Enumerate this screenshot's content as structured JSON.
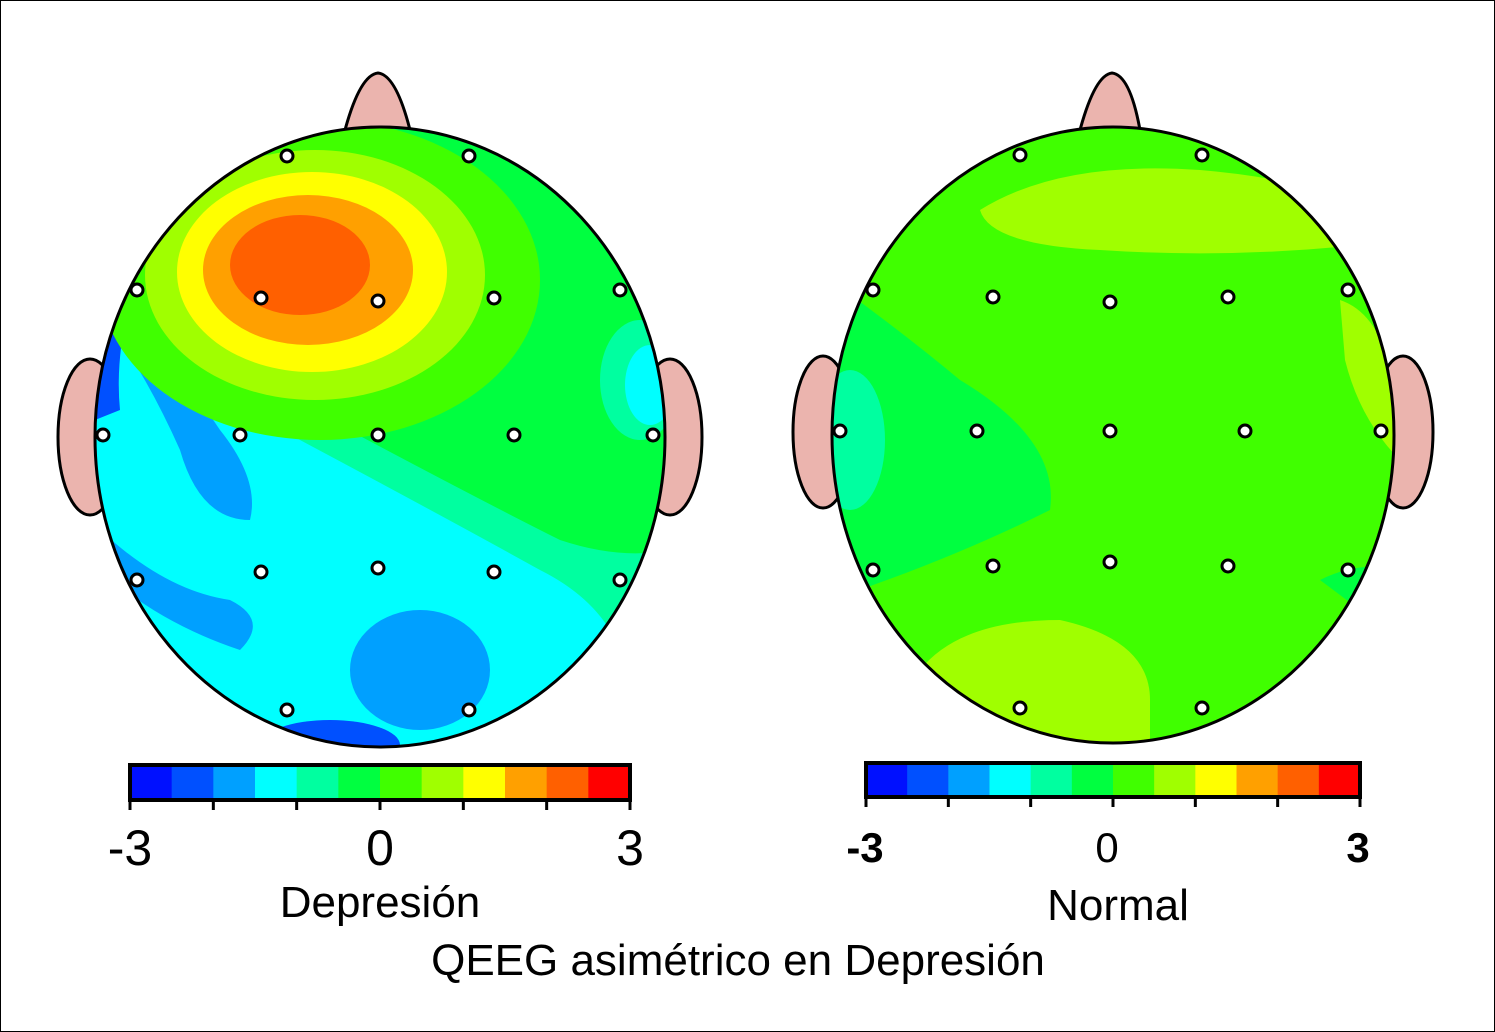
{
  "figure": {
    "title": "QEEG asimétrico en Depresión",
    "colormap": [
      "#0010ff",
      "#0050ff",
      "#00a0ff",
      "#00ffff",
      "#00ffa0",
      "#00ff40",
      "#40ff00",
      "#a0ff00",
      "#ffff00",
      "#ffa000",
      "#ff6000",
      "#ff0000"
    ],
    "scale_min": -3,
    "scale_max": 3,
    "tick_labels": [
      "-3",
      "0",
      "3"
    ],
    "skin_color": "#ebb4ae"
  },
  "maps": [
    {
      "label": "Depresión"
    },
    {
      "label": "Normal"
    }
  ]
}
